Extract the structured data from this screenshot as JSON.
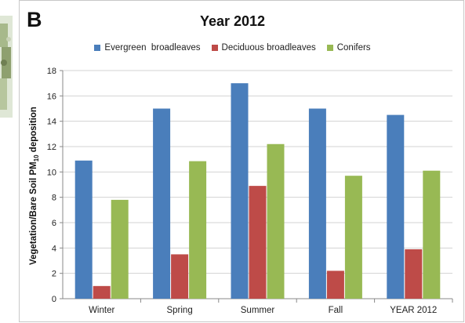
{
  "panel_label": "B",
  "chart_data": {
    "type": "bar",
    "title": "Year 2012",
    "ylabel": {
      "main": "Vegetation/Bare Soil PM",
      "subscript": "10",
      "suffix": " deposition"
    },
    "xlabel": "",
    "categories": [
      "Winter",
      "Spring",
      "Summer",
      "Fall",
      "YEAR 2012"
    ],
    "ylim": [
      0,
      18
    ],
    "yticks": [
      0,
      2,
      4,
      6,
      8,
      10,
      12,
      14,
      16,
      18
    ],
    "grid": true,
    "legend_position": "top",
    "series": [
      {
        "name": "Evergreen  broadleaves",
        "color": "#4a7ebb",
        "values": [
          10.9,
          15.0,
          17.0,
          15.0,
          14.5
        ]
      },
      {
        "name": "Deciduous broadleaves",
        "color": "#be4b48",
        "values": [
          1.0,
          3.5,
          8.9,
          2.2,
          3.9
        ]
      },
      {
        "name": "Conifers",
        "color": "#98b954",
        "values": [
          7.8,
          10.85,
          12.2,
          9.7,
          10.1
        ]
      }
    ]
  }
}
